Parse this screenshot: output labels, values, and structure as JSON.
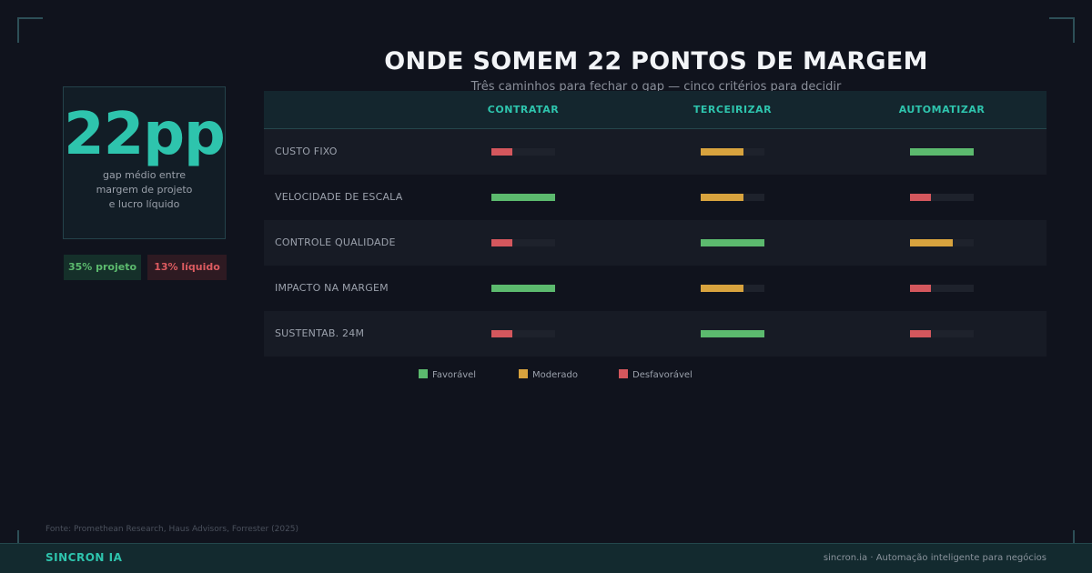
{
  "title": "ONDE SOMEM 22 PONTOS DE MARGEM",
  "subtitle": "Três caminhos para fechar o gap — cinco critérios para decidir",
  "stat": {
    "value": "22pp",
    "description_lines": [
      "gap médio entre",
      "margem de projeto",
      "e lucro líquido"
    ]
  },
  "pills": [
    {
      "label": "35% projeto",
      "tone": "favorable"
    },
    {
      "label": "13% líquido",
      "tone": "unfavorable"
    }
  ],
  "colors": {
    "accent": "#2ec4ad",
    "favorable": "#5cba6e",
    "moderate": "#d8a33e",
    "unfavorable": "#d4575d"
  },
  "columns": [
    "CONTRATAR",
    "TERCEIRIZAR",
    "AUTOMATIZAR"
  ],
  "rows": [
    {
      "label": "CUSTO FIXO",
      "cells": [
        {
          "rating": "unfavorable",
          "level": 0.33
        },
        {
          "rating": "moderate",
          "level": 0.67
        },
        {
          "rating": "favorable",
          "level": 1.0
        }
      ]
    },
    {
      "label": "VELOCIDADE DE ESCALA",
      "cells": [
        {
          "rating": "favorable",
          "level": 1.0
        },
        {
          "rating": "moderate",
          "level": 0.67
        },
        {
          "rating": "unfavorable",
          "level": 0.33
        }
      ]
    },
    {
      "label": "CONTROLE QUALIDADE",
      "cells": [
        {
          "rating": "unfavorable",
          "level": 0.33
        },
        {
          "rating": "favorable",
          "level": 1.0
        },
        {
          "rating": "moderate",
          "level": 0.67
        }
      ]
    },
    {
      "label": "IMPACTO NA MARGEM",
      "cells": [
        {
          "rating": "favorable",
          "level": 1.0
        },
        {
          "rating": "moderate",
          "level": 0.67
        },
        {
          "rating": "unfavorable",
          "level": 0.33
        }
      ]
    },
    {
      "label": "SUSTENTAB. 24M",
      "cells": [
        {
          "rating": "unfavorable",
          "level": 0.33
        },
        {
          "rating": "favorable",
          "level": 1.0
        },
        {
          "rating": "unfavorable",
          "level": 0.33
        }
      ]
    }
  ],
  "legend": [
    {
      "label": "Favorável",
      "rating": "favorable"
    },
    {
      "label": "Moderado",
      "rating": "moderate"
    },
    {
      "label": "Desfavorável",
      "rating": "unfavorable"
    }
  ],
  "source": "Fonte: Promethean Research, Haus Advisors, Forrester (2025)",
  "footer": {
    "brand": "SINCRON IA",
    "right": "sincron.ia  ·  Automação inteligente para negócios"
  }
}
